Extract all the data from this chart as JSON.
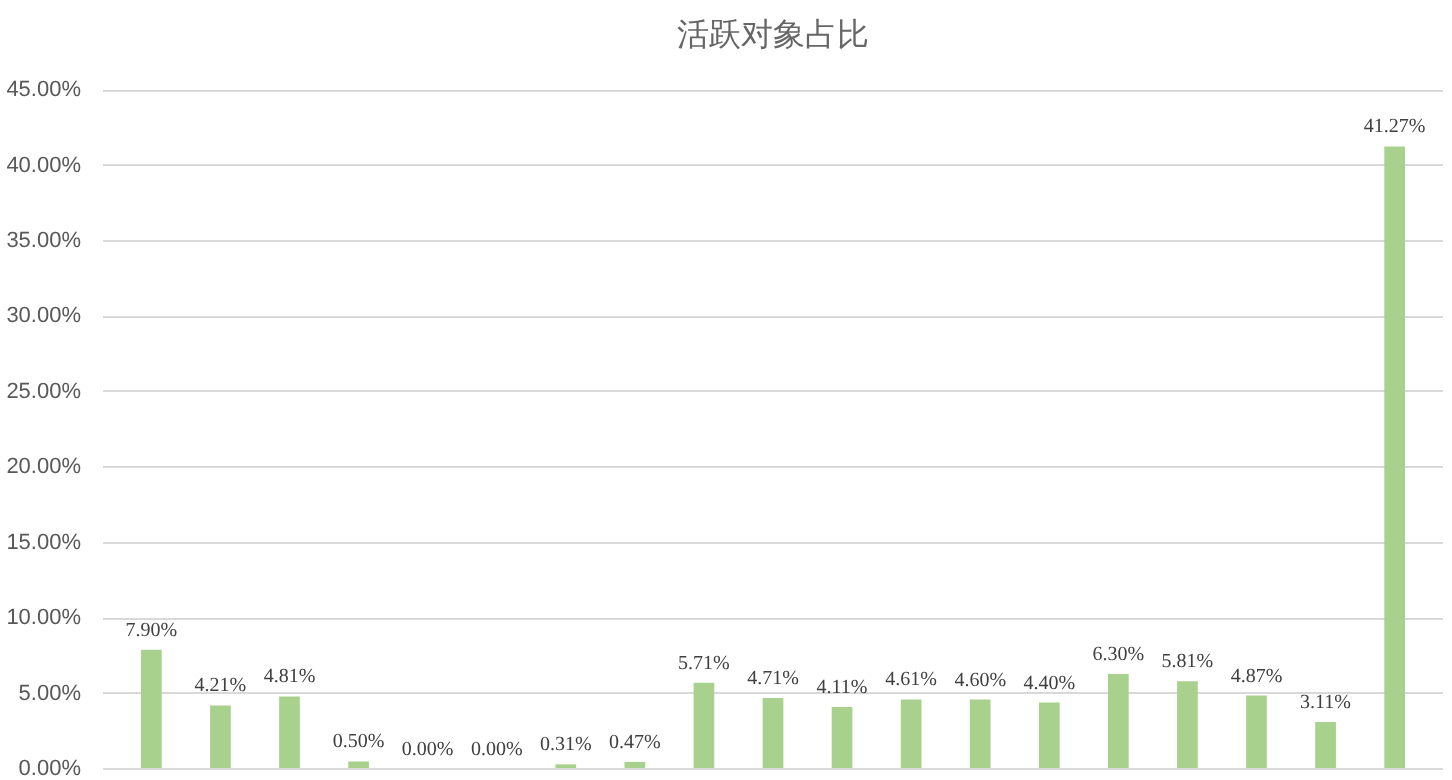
{
  "chart_data": {
    "type": "bar",
    "title": "活跃对象占比",
    "categories": [
      null,
      null,
      null,
      null,
      null,
      null,
      null,
      null,
      null,
      null,
      null,
      null,
      null,
      null,
      null,
      null,
      null,
      null,
      null
    ],
    "values": [
      7.9,
      4.21,
      4.81,
      0.5,
      0.0,
      0.0,
      0.31,
      0.47,
      5.71,
      4.71,
      4.11,
      4.61,
      4.6,
      4.4,
      6.3,
      5.81,
      4.87,
      3.11,
      41.27
    ],
    "value_labels": [
      "7.90%",
      "4.21%",
      "4.81%",
      "0.50%",
      "0.00%",
      "0.00%",
      "0.31%",
      "0.47%",
      "5.71%",
      "4.71%",
      "4.11%",
      "4.61%",
      "4.60%",
      "4.40%",
      "6.30%",
      "5.81%",
      "4.87%",
      "3.11%",
      "41.27%"
    ],
    "color": "#a9d18e",
    "ylim": [
      0,
      45
    ],
    "yticks": [
      {
        "value": 0,
        "label": "0.00%"
      },
      {
        "value": 5,
        "label": "5.00%"
      },
      {
        "value": 10,
        "label": "10.00%"
      },
      {
        "value": 15,
        "label": "15.00%"
      },
      {
        "value": 20,
        "label": "20.00%"
      },
      {
        "value": 25,
        "label": "25.00%"
      },
      {
        "value": 30,
        "label": "30.00%"
      },
      {
        "value": 35,
        "label": "35.00%"
      },
      {
        "value": 40,
        "label": "40.00%"
      },
      {
        "value": 45,
        "label": "45.00%"
      }
    ],
    "grid": "y"
  }
}
